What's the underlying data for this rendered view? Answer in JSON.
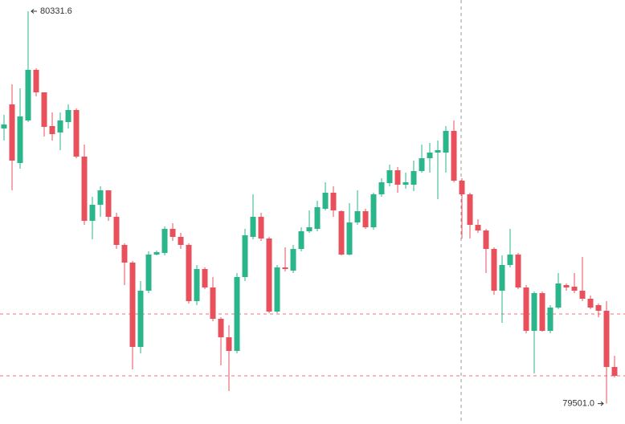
{
  "chart_data": {
    "type": "candlestick",
    "up_color": "#2bb58a",
    "down_color": "#e8505b",
    "reference_line_color": "#e8505b",
    "ylim": [
      79457.8,
      80355.4
    ],
    "open": [
      80083.4,
      80134.4,
      80010.3,
      80100.4,
      80207.5,
      80159.9,
      80088.5,
      80074.9,
      80097.0,
      80122.5,
      80023.9,
      79887.9,
      79921.9,
      79952.5,
      79896.4,
      79836.9,
      79799.5,
      79621.0,
      79740.0,
      79816.5,
      79819.9,
      79870.9,
      79853.9,
      79836.9,
      79717.9,
      79785.9,
      79746.8,
      79680.5,
      79641.4,
      79612.5,
      79768.9,
      79853.9,
      79896.4,
      79850.5,
      79695.8,
      79789.3,
      79782.5,
      79828.4,
      79865.8,
      79870.9,
      79913.4,
      79947.4,
      79908.3,
      79816.5,
      79884.5,
      79908.3,
      79874.3,
      79944.0,
      79967.8,
      79995.0,
      79964.4,
      79964.4,
      79993.3,
      80020.5,
      80032.4,
      80032.4,
      80078.3,
      79972.9,
      79944.0,
      79879.4,
      79867.5,
      79828.4,
      79740.0,
      79794.4,
      79816.5,
      79746.8,
      79655.0,
      79734.9,
      79655.0,
      79704.3,
      79751.9,
      79748.5,
      79740.0,
      79723.0,
      79709.4,
      79697.5,
      79578.5
    ],
    "high": [
      80112.3,
      80176.9,
      80168.4,
      80331.6,
      80210.9,
      80159.9,
      80117.4,
      80117.4,
      80134.4,
      80125.9,
      80049.4,
      79938.9,
      79961.0,
      79952.5,
      79904.9,
      79840.3,
      79802.9,
      79760.4,
      79823.3,
      79825.0,
      79876.0,
      79882.8,
      79862.4,
      79840.3,
      79794.4,
      79789.3,
      79768.9,
      79683.9,
      79666.9,
      79777.4,
      79870.9,
      79944.0,
      79904.9,
      79853.9,
      79794.4,
      79831.8,
      79836.9,
      79874.3,
      79910.0,
      79930.4,
      79969.5,
      79961.0,
      79910.0,
      79925.3,
      79952.5,
      79913.4,
      79947.4,
      79978.0,
      80006.9,
      80001.8,
      79989.9,
      80015.4,
      80049.4,
      80052.8,
      80057.9,
      80088.5,
      80100.4,
      79978.0,
      79947.4,
      79891.3,
      79870.9,
      79831.8,
      79814.8,
      79870.9,
      79819.9,
      79751.9,
      79738.3,
      79738.3,
      79709.4,
      79777.4,
      79755.3,
      79777.4,
      79811.4,
      79729.8,
      79712.8,
      79717.9,
      79602.3
    ],
    "low": [
      80057.9,
      79952.5,
      79998.4,
      80097.0,
      80151.4,
      80066.4,
      80057.9,
      80037.5,
      80083.4,
      80020.5,
      79879.4,
      79848.8,
      79896.4,
      79887.9,
      79828.4,
      79751.9,
      79573.4,
      79607.4,
      79734.9,
      79814.8,
      79814.8,
      79845.4,
      79828.4,
      79712.8,
      79709.4,
      79743.4,
      79675.4,
      79581.9,
      79527.5,
      79607.4,
      79760.4,
      79848.8,
      79845.4,
      79692.4,
      79692.4,
      79780.8,
      79777.4,
      79823.3,
      79862.4,
      79865.8,
      79910.0,
      79896.4,
      79814.8,
      79814.8,
      79879.4,
      79870.9,
      79869.2,
      79938.9,
      79961.0,
      79947.4,
      79955.9,
      79950.8,
      79989.9,
      79989.9,
      79933.8,
      79989.9,
      79969.5,
      79850.5,
      79850.5,
      79862.4,
      79777.4,
      79731.5,
      79672.0,
      79789.3,
      79743.4,
      79649.9,
      79564.9,
      79653.3,
      79649.9,
      79700.9,
      79740.0,
      79734.9,
      79717.9,
      79700.9,
      79683.9,
      79501.0,
      79556.4
    ],
    "close": [
      80091.9,
      80015.4,
      80108.9,
      80207.5,
      80159.9,
      80086.8,
      80071.5,
      80100.4,
      80122.5,
      80023.9,
      79887.9,
      79921.9,
      79952.5,
      79896.4,
      79836.9,
      79799.5,
      79621.0,
      79740.0,
      79816.5,
      79821.6,
      79870.9,
      79853.9,
      79836.9,
      79717.9,
      79785.9,
      79746.8,
      79680.5,
      79641.4,
      79612.5,
      79768.9,
      79857.3,
      79896.4,
      79850.5,
      79695.8,
      79789.3,
      79785.9,
      79828.4,
      79865.8,
      79874.3,
      79916.8,
      79947.4,
      79910.0,
      79816.5,
      79884.5,
      79908.3,
      79874.3,
      79944.0,
      79969.5,
      79995.0,
      79964.4,
      79969.5,
      79993.3,
      80020.5,
      80032.4,
      80037.5,
      80078.3,
      79972.9,
      79944.0,
      79879.4,
      79867.5,
      79828.4,
      79740.0,
      79794.4,
      79816.5,
      79746.8,
      79655.0,
      79734.9,
      79655.0,
      79704.3,
      79755.3,
      79746.8,
      79740.0,
      79723.0,
      79704.3,
      79697.5,
      79578.5,
      79559.8
    ],
    "reference_lines": [
      79690.7,
      79559.8
    ],
    "high_label": {
      "value": 80331.6,
      "label": "80331.6"
    },
    "low_label": {
      "value": 79501.0,
      "label": "79501.0"
    }
  }
}
